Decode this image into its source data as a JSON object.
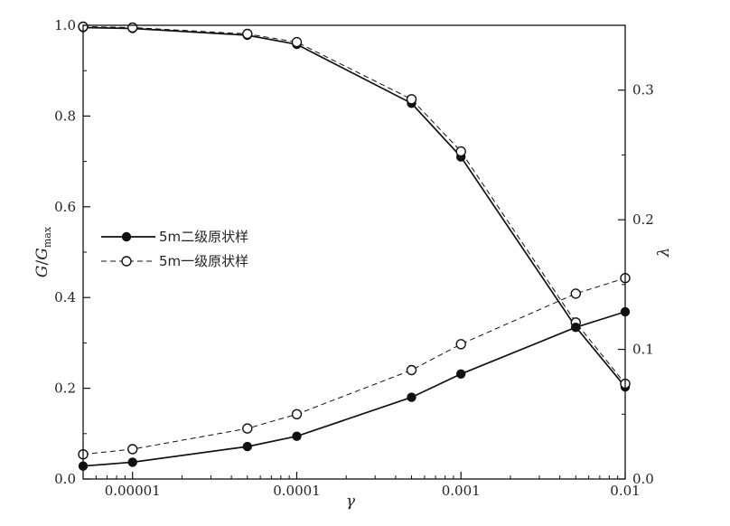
{
  "chart_data": {
    "type": "line",
    "x_scale": "log",
    "x_tick_values": [
      1e-05,
      0.0001,
      0.001,
      0.01
    ],
    "x_tick_labels": [
      "0.00001",
      "0.0001",
      "0.001",
      "0.01"
    ],
    "xlim": [
      5e-06,
      0.01
    ],
    "xlabel": "γ",
    "y_left": {
      "label_main": "G",
      "label_sep": "/",
      "label_den": "G",
      "label_den_sub": "max",
      "ylim": [
        0,
        1.0
      ],
      "ticks": [
        0,
        0.2,
        0.4,
        0.6,
        0.8,
        1.0
      ],
      "tick_labels": [
        "0.0",
        "0.2",
        "0.4",
        "0.6",
        "0.8",
        "1.0"
      ]
    },
    "y_right": {
      "label": "λ",
      "ylim": [
        0,
        0.35
      ],
      "ticks": [
        0,
        0.1,
        0.2,
        0.3
      ],
      "tick_labels": [
        "0.0",
        "0.1",
        "0.2",
        "0.3"
      ]
    },
    "grid": false,
    "legend_position": "middle-left",
    "x": [
      5e-06,
      1e-05,
      5e-05,
      0.0001,
      0.0005,
      0.001,
      0.005,
      0.01
    ],
    "series": [
      {
        "name": "5m二级原状样",
        "axis": "left",
        "marker": "filled",
        "line": "solid",
        "values": [
          0.995,
          0.993,
          0.978,
          0.958,
          0.828,
          0.71,
          0.335,
          0.203
        ]
      },
      {
        "name": "5m一级原状样",
        "axis": "left",
        "marker": "open",
        "line": "dashed",
        "values": [
          0.997,
          0.995,
          0.981,
          0.963,
          0.837,
          0.722,
          0.345,
          0.21
        ]
      },
      {
        "name": "5m二级原状样",
        "axis": "right",
        "marker": "filled",
        "line": "solid",
        "show_in_legend": false,
        "values": [
          0.01,
          0.013,
          0.025,
          0.033,
          0.063,
          0.081,
          0.117,
          0.129
        ]
      },
      {
        "name": "5m一级原状样",
        "axis": "right",
        "marker": "open",
        "line": "dashed",
        "show_in_legend": false,
        "values": [
          0.019,
          0.023,
          0.039,
          0.05,
          0.084,
          0.104,
          0.143,
          0.155
        ]
      }
    ]
  }
}
